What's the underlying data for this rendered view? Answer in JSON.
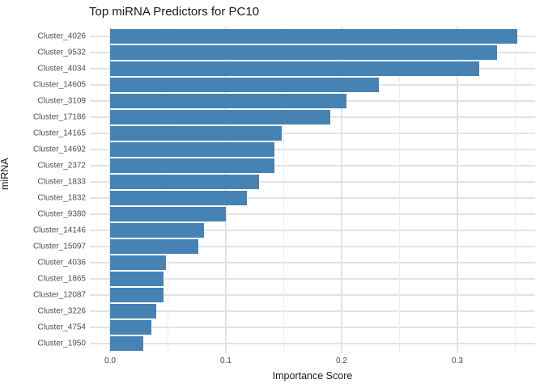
{
  "chart_data": {
    "type": "bar",
    "orientation": "horizontal",
    "title": "Top miRNA Predictors for PC10",
    "xlabel": "Importance Score",
    "ylabel": "miRNA",
    "categories": [
      "Cluster_4026",
      "Cluster_9532",
      "Cluster_4034",
      "Cluster_14605",
      "Cluster_3109",
      "Cluster_17186",
      "Cluster_14165",
      "Cluster_14692",
      "Cluster_2372",
      "Cluster_1833",
      "Cluster_1832",
      "Cluster_9380",
      "Cluster_14146",
      "Cluster_15097",
      "Cluster_4036",
      "Cluster_1865",
      "Cluster_12087",
      "Cluster_3226",
      "Cluster_4754",
      "Cluster_1950"
    ],
    "values": [
      0.352,
      0.334,
      0.319,
      0.232,
      0.204,
      0.19,
      0.148,
      0.142,
      0.142,
      0.129,
      0.118,
      0.1,
      0.081,
      0.076,
      0.048,
      0.046,
      0.046,
      0.04,
      0.036,
      0.029
    ],
    "xlim": [
      0,
      0.367
    ],
    "x_ticks": [
      0.0,
      0.1,
      0.2,
      0.3
    ],
    "x_tick_labels": [
      "0.0",
      "0.1",
      "0.2",
      "0.3"
    ],
    "x_minor_ticks": [
      0.05,
      0.15,
      0.25,
      0.35
    ],
    "grid": true,
    "legend": "none",
    "colors": {
      "bar": "#4682B4",
      "grid_major": "#e3e3e3",
      "grid_minor": "#ededed",
      "axis_text": "#4d4d4d",
      "title_text": "#1a1a1a",
      "background": "#ffffff"
    }
  }
}
